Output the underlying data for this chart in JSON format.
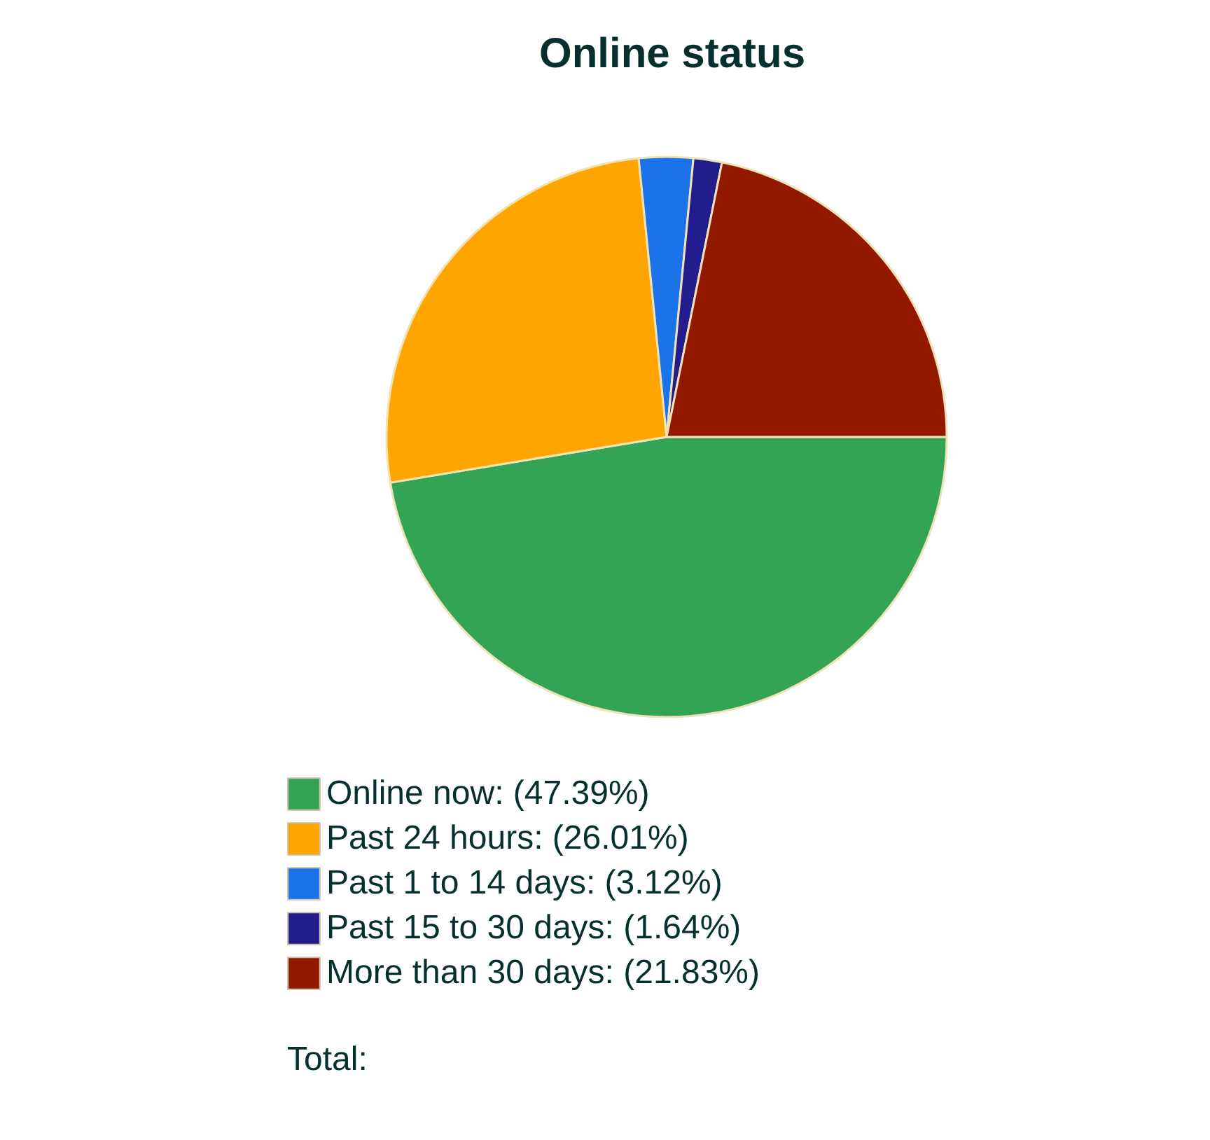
{
  "chart_data": {
    "type": "pie",
    "title": "Online status",
    "categories": [
      "Online now",
      "Past 24 hours",
      "Past 1 to 14 days",
      "Past 15 to 30 days",
      "More than 30 days"
    ],
    "values": [
      47.39,
      26.01,
      3.12,
      1.64,
      21.83
    ],
    "value_labels": [
      "(47.39%)",
      "(26.01%)",
      "(3.12%)",
      "(1.64%)",
      "(21.83%)"
    ],
    "colors": [
      "#33a355",
      "#ffa500",
      "#1a73e8",
      "#231c8c",
      "#931800"
    ],
    "legend": "bottom",
    "annotations": [
      "Total:"
    ]
  }
}
